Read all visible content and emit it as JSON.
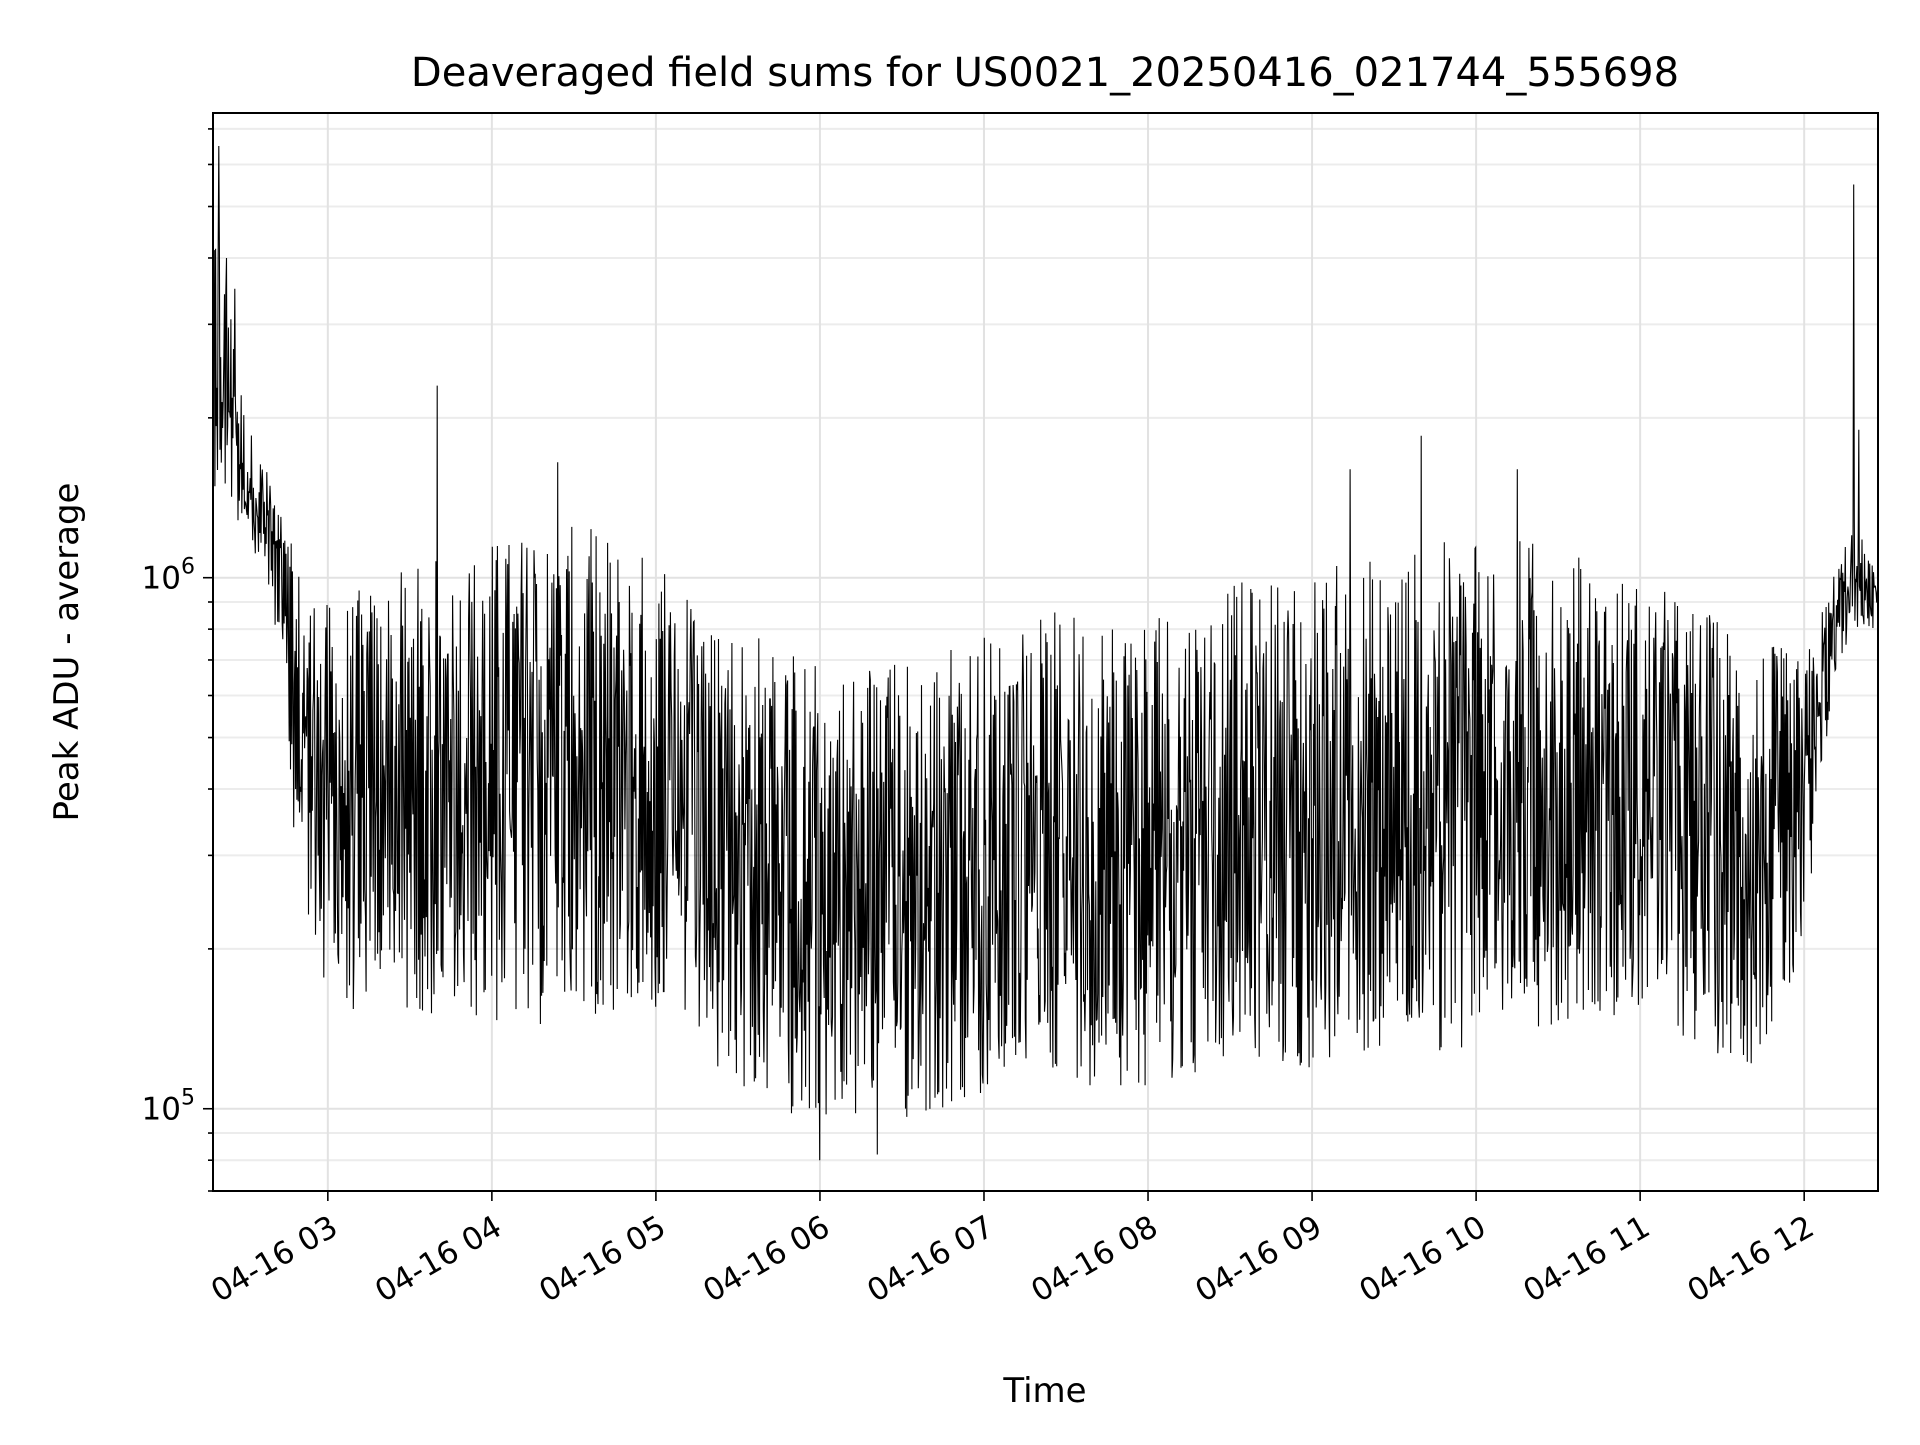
{
  "chart_data": {
    "type": "line",
    "title": "Deaveraged field sums for US0021_20250416_021744_555698",
    "xlabel": "Time",
    "ylabel": "Peak ADU - average",
    "x_scale": "time",
    "y_scale": "log",
    "xlim": [
      "2025-04-16T02:18:00",
      "2025-04-16T12:27:00"
    ],
    "ylim": [
      70000,
      7500000
    ],
    "grid": true,
    "legend": "none",
    "line_color": "#000000",
    "x_ticks": [
      {
        "time": "2025-04-16T03:00:00",
        "label": "04-16 03"
      },
      {
        "time": "2025-04-16T04:00:00",
        "label": "04-16 04"
      },
      {
        "time": "2025-04-16T05:00:00",
        "label": "04-16 05"
      },
      {
        "time": "2025-04-16T06:00:00",
        "label": "04-16 06"
      },
      {
        "time": "2025-04-16T07:00:00",
        "label": "04-16 07"
      },
      {
        "time": "2025-04-16T08:00:00",
        "label": "04-16 08"
      },
      {
        "time": "2025-04-16T09:00:00",
        "label": "04-16 09"
      },
      {
        "time": "2025-04-16T10:00:00",
        "label": "04-16 10"
      },
      {
        "time": "2025-04-16T11:00:00",
        "label": "04-16 11"
      },
      {
        "time": "2025-04-16T12:00:00",
        "label": "04-16 12"
      }
    ],
    "y_ticks": [
      {
        "value": 100000,
        "base": "10",
        "exp": "5"
      },
      {
        "value": 1000000,
        "base": "10",
        "exp": "6"
      }
    ],
    "series": [
      {
        "envelope_time": [
          "2025-04-16T02:18:00",
          "2025-04-16T02:22:00",
          "2025-04-16T02:30:00",
          "2025-04-16T02:40:00",
          "2025-04-16T02:48:00",
          "2025-04-16T03:00:00",
          "2025-04-16T03:20:00",
          "2025-04-16T03:40:00",
          "2025-04-16T04:00:00",
          "2025-04-16T04:20:00",
          "2025-04-16T04:40:00",
          "2025-04-16T05:00:00",
          "2025-04-16T05:20:00",
          "2025-04-16T05:40:00",
          "2025-04-16T06:00:00",
          "2025-04-16T06:20:00",
          "2025-04-16T06:40:00",
          "2025-04-16T07:00:00",
          "2025-04-16T07:20:00",
          "2025-04-16T07:40:00",
          "2025-04-16T08:00:00",
          "2025-04-16T08:20:00",
          "2025-04-16T08:40:00",
          "2025-04-16T09:00:00",
          "2025-04-16T09:20:00",
          "2025-04-16T09:40:00",
          "2025-04-16T10:00:00",
          "2025-04-16T10:20:00",
          "2025-04-16T10:40:00",
          "2025-04-16T11:00:00",
          "2025-04-16T11:20:00",
          "2025-04-16T11:40:00",
          "2025-04-16T12:00:00",
          "2025-04-16T12:10:00",
          "2025-04-16T12:18:00",
          "2025-04-16T12:27:00"
        ],
        "envelope_low": [
          1500000,
          1400000,
          1200000,
          900000,
          300000,
          150000,
          150000,
          150000,
          140000,
          140000,
          150000,
          150000,
          120000,
          100000,
          95000,
          90000,
          95000,
          100000,
          120000,
          110000,
          110000,
          115000,
          120000,
          115000,
          120000,
          125000,
          130000,
          140000,
          150000,
          150000,
          130000,
          120000,
          170000,
          600000,
          800000,
          800000
        ],
        "envelope_high": [
          6000000,
          4000000,
          2000000,
          1500000,
          1100000,
          900000,
          1000000,
          1100000,
          1200000,
          1250000,
          1250000,
          1100000,
          900000,
          800000,
          700000,
          700000,
          750000,
          800000,
          850000,
          900000,
          900000,
          950000,
          1000000,
          1050000,
          1100000,
          1150000,
          1200000,
          1200000,
          1100000,
          1000000,
          900000,
          800000,
          700000,
          1000000,
          1300000,
          1000000
        ],
        "spikes": [
          {
            "time": "2025-04-16T02:20:00",
            "value": 6500000
          },
          {
            "time": "2025-04-16T02:23:00",
            "value": 4000000
          },
          {
            "time": "2025-04-16T02:26:00",
            "value": 3500000
          },
          {
            "time": "2025-04-16T03:40:00",
            "value": 2300000
          },
          {
            "time": "2025-04-16T04:24:00",
            "value": 1650000
          },
          {
            "time": "2025-04-16T06:00:00",
            "value": 80000
          },
          {
            "time": "2025-04-16T06:21:00",
            "value": 82000
          },
          {
            "time": "2025-04-16T09:14:00",
            "value": 1600000
          },
          {
            "time": "2025-04-16T09:40:00",
            "value": 1850000
          },
          {
            "time": "2025-04-16T10:15:00",
            "value": 1600000
          },
          {
            "time": "2025-04-16T12:18:00",
            "value": 5500000
          },
          {
            "time": "2025-04-16T12:20:00",
            "value": 1900000
          }
        ]
      }
    ]
  }
}
